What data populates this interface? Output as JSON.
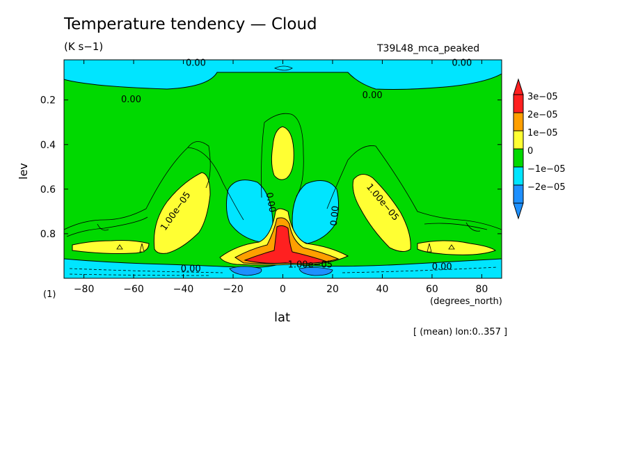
{
  "chart_data": {
    "type": "heatmap",
    "title": "Temperature tendency — Cloud",
    "subtitle": "(K s−1)",
    "run_name": "T39L48_mca_peaked",
    "xlabel": "lat",
    "xunits": "(degrees_north)",
    "ylabel": "lev",
    "panel_label": "(1)",
    "note": "[ (mean) lon:0..357 ]",
    "xlim": [
      -88,
      88
    ],
    "ylim": [
      1.0,
      0.02
    ],
    "x_ticks": [
      {
        "value": -80,
        "label": "−80"
      },
      {
        "value": -60,
        "label": "−60"
      },
      {
        "value": -40,
        "label": "−40"
      },
      {
        "value": -20,
        "label": "−20"
      },
      {
        "value": 0,
        "label": "0"
      },
      {
        "value": 20,
        "label": "20"
      },
      {
        "value": 40,
        "label": "40"
      },
      {
        "value": 60,
        "label": "60"
      },
      {
        "value": 80,
        "label": "80"
      }
    ],
    "y_ticks": [
      {
        "value": 0.2,
        "label": "0.2"
      },
      {
        "value": 0.4,
        "label": "0.4"
      },
      {
        "value": 0.6,
        "label": "0.6"
      },
      {
        "value": 0.8,
        "label": "0.8"
      }
    ],
    "colorbar": {
      "levels": [
        {
          "value": -2e-05,
          "label": "−2e−05"
        },
        {
          "value": -1e-05,
          "label": "−1e−05"
        },
        {
          "value": 0,
          "label": "0"
        },
        {
          "value": 1e-05,
          "label": "1e−05"
        },
        {
          "value": 2e-05,
          "label": "2e−05"
        },
        {
          "value": 3e-05,
          "label": "3e−05"
        }
      ],
      "colors": [
        "#1e90ff",
        "#00e5ff",
        "#00d900",
        "#ffff33",
        "#ff9f00",
        "#ff2020"
      ]
    },
    "contour_labels": [
      {
        "text": "0.00",
        "lat": -35,
        "lev": 0.035
      },
      {
        "text": "0.00",
        "lat": 72,
        "lev": 0.035
      },
      {
        "text": "0.00",
        "lat": -61,
        "lev": 0.2
      },
      {
        "text": "0.00",
        "lat": 36,
        "lev": 0.18
      },
      {
        "text": "1.00e−05",
        "lat": -43,
        "lev": 0.7,
        "angle": -55
      },
      {
        "text": "1.00e−05",
        "lat": 40,
        "lev": 0.66,
        "angle": 50
      },
      {
        "text": "0.00",
        "lat": -5,
        "lev": 0.66,
        "angle": 80
      },
      {
        "text": "0.00",
        "lat": 21,
        "lev": 0.72,
        "angle": -85
      },
      {
        "text": "0.00",
        "lat": -37,
        "lev": 0.96
      },
      {
        "text": "0.00",
        "lat": 64,
        "lev": 0.95
      },
      {
        "text": "1.00e−05",
        "lat": 11,
        "lev": 0.94
      }
    ]
  }
}
